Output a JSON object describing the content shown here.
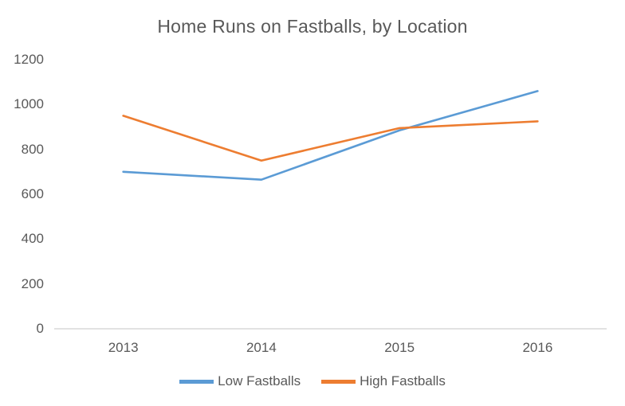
{
  "chart_data": {
    "type": "line",
    "title": "Home Runs on Fastballs, by Location",
    "categories": [
      "2013",
      "2014",
      "2015",
      "2016"
    ],
    "series": [
      {
        "name": "Low Fastballs",
        "color": "#5B9BD5",
        "values": [
          700,
          665,
          885,
          1060
        ]
      },
      {
        "name": "High Fastballs",
        "color": "#ED7D31",
        "values": [
          950,
          750,
          895,
          925
        ]
      }
    ],
    "xlabel": "",
    "ylabel": "",
    "ylim": [
      0,
      1200
    ],
    "y_ticks": [
      0,
      200,
      400,
      600,
      800,
      1000,
      1200
    ],
    "grid": false,
    "legend_position": "bottom",
    "colors": {
      "title_text": "#595959",
      "tick_text": "#595959",
      "legend_text": "#595959",
      "axis_line": "#D9D9D9",
      "background": "#FFFFFF"
    }
  }
}
